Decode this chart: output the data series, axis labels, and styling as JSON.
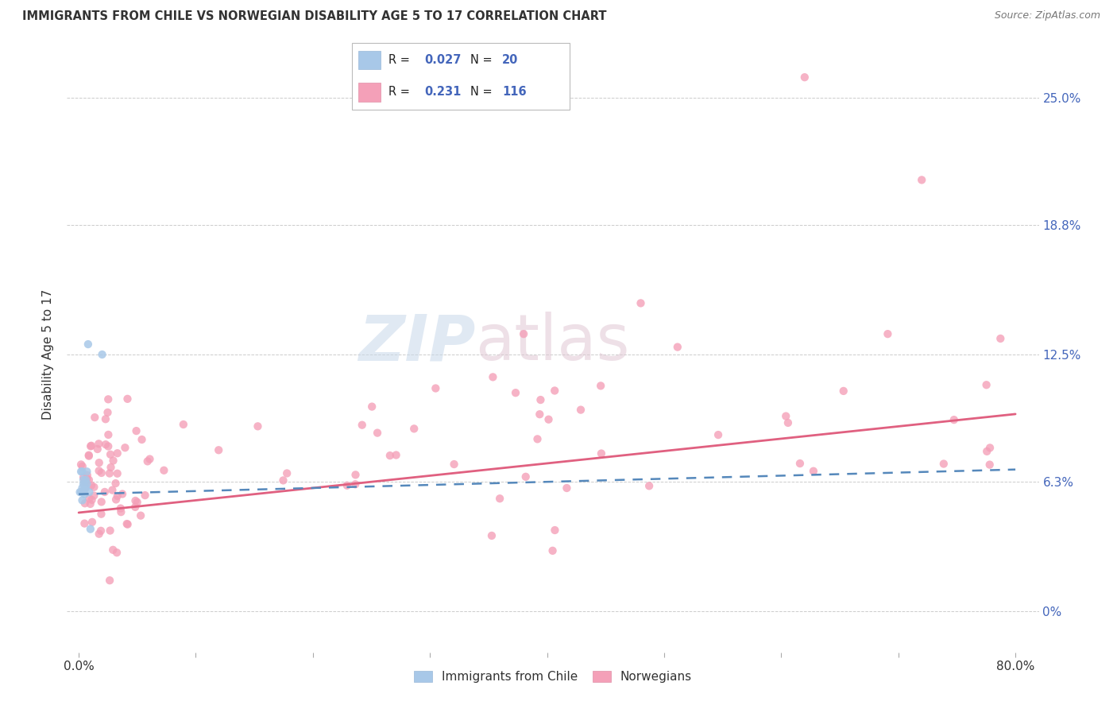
{
  "title": "IMMIGRANTS FROM CHILE VS NORWEGIAN DISABILITY AGE 5 TO 17 CORRELATION CHART",
  "source": "Source: ZipAtlas.com",
  "ylabel": "Disability Age 5 to 17",
  "xlim": [
    -0.01,
    0.82
  ],
  "ylim": [
    -0.02,
    0.27
  ],
  "ytick_vals": [
    0.0,
    0.063,
    0.125,
    0.188,
    0.25
  ],
  "ytick_labels": [
    "0%",
    "6.3%",
    "12.5%",
    "18.8%",
    "25.0%"
  ],
  "xtick_vals": [
    0.0,
    0.1,
    0.2,
    0.3,
    0.4,
    0.5,
    0.6,
    0.7,
    0.8
  ],
  "xtick_labels": [
    "0.0%",
    "",
    "",
    "",
    "",
    "",
    "",
    "",
    "80.0%"
  ],
  "chile_color": "#a8c8e8",
  "norway_color": "#f4a0b8",
  "chile_line_color": "#5588bb",
  "norway_line_color": "#e06080",
  "r_chile": 0.027,
  "n_chile": 20,
  "r_norway": 0.231,
  "n_norway": 116,
  "legend_label_chile": "Immigrants from Chile",
  "legend_label_norway": "Norwegians",
  "text_color_dark": "#333333",
  "text_color_blue": "#4466bb",
  "grid_color": "#cccccc",
  "chile_line_start_y": 0.057,
  "chile_line_end_y": 0.069,
  "norway_line_start_y": 0.048,
  "norway_line_end_y": 0.096
}
